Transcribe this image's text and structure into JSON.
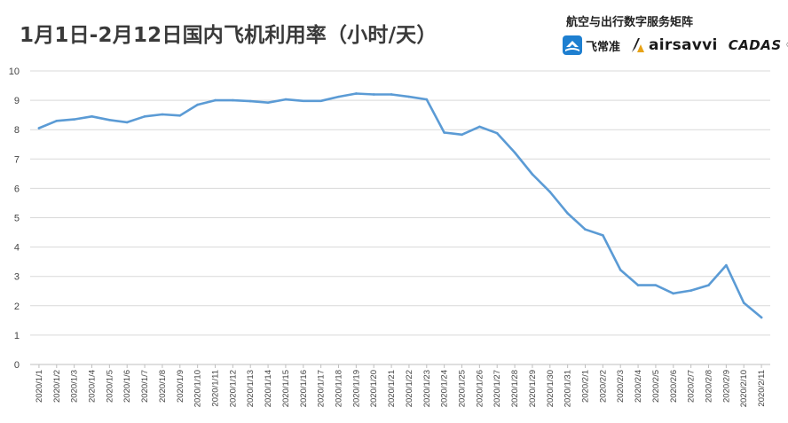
{
  "header": {
    "title": "1月1日-2月12日国内飞机利用率（小时/天）",
    "brand_heading": "航空与出行数字服务矩阵",
    "logos": [
      {
        "name": "feichangzhun",
        "text": "飞常准",
        "icon": "plane-badge-icon",
        "color": "#1e7fd0"
      },
      {
        "name": "airsavvi",
        "text": "airsavvi",
        "icon": "airsavvi-mark-icon",
        "color": "#e8a317"
      },
      {
        "name": "cadas",
        "text": "CADAS",
        "reg": "®",
        "color": "#222222"
      }
    ]
  },
  "chart_data": {
    "type": "line",
    "title": "1月1日-2月12日国内飞机利用率（小时/天）",
    "xlabel": "",
    "ylabel": "",
    "ylim": [
      0,
      10
    ],
    "yticks": [
      0,
      1,
      2,
      3,
      4,
      5,
      6,
      7,
      8,
      9,
      10
    ],
    "grid": true,
    "legend": "none",
    "line_color": "#5b9bd5",
    "categories": [
      "2020/1/1",
      "2020/1/2",
      "2020/1/3",
      "2020/1/4",
      "2020/1/5",
      "2020/1/6",
      "2020/1/7",
      "2020/1/8",
      "2020/1/9",
      "2020/1/10",
      "2020/1/11",
      "2020/1/12",
      "2020/1/13",
      "2020/1/14",
      "2020/1/15",
      "2020/1/16",
      "2020/1/17",
      "2020/1/18",
      "2020/1/19",
      "2020/1/20",
      "2020/1/21",
      "2020/1/22",
      "2020/1/23",
      "2020/1/24",
      "2020/1/25",
      "2020/1/26",
      "2020/1/27",
      "2020/1/28",
      "2020/1/29",
      "2020/1/30",
      "2020/1/31",
      "2020/2/1",
      "2020/2/2",
      "2020/2/3",
      "2020/2/4",
      "2020/2/5",
      "2020/2/6",
      "2020/2/7",
      "2020/2/8",
      "2020/2/9",
      "2020/2/10",
      "2020/2/11"
    ],
    "values": [
      8.05,
      8.3,
      8.35,
      8.45,
      8.33,
      8.25,
      8.45,
      8.52,
      8.48,
      8.85,
      9.0,
      9.0,
      8.97,
      8.92,
      9.03,
      8.98,
      8.98,
      9.12,
      9.23,
      9.2,
      9.2,
      9.12,
      9.03,
      7.9,
      7.83,
      8.1,
      7.88,
      7.22,
      6.48,
      5.88,
      5.15,
      4.6,
      4.4,
      3.22,
      2.7,
      2.7,
      2.42,
      2.52,
      2.7,
      3.38,
      2.1,
      1.6
    ]
  }
}
